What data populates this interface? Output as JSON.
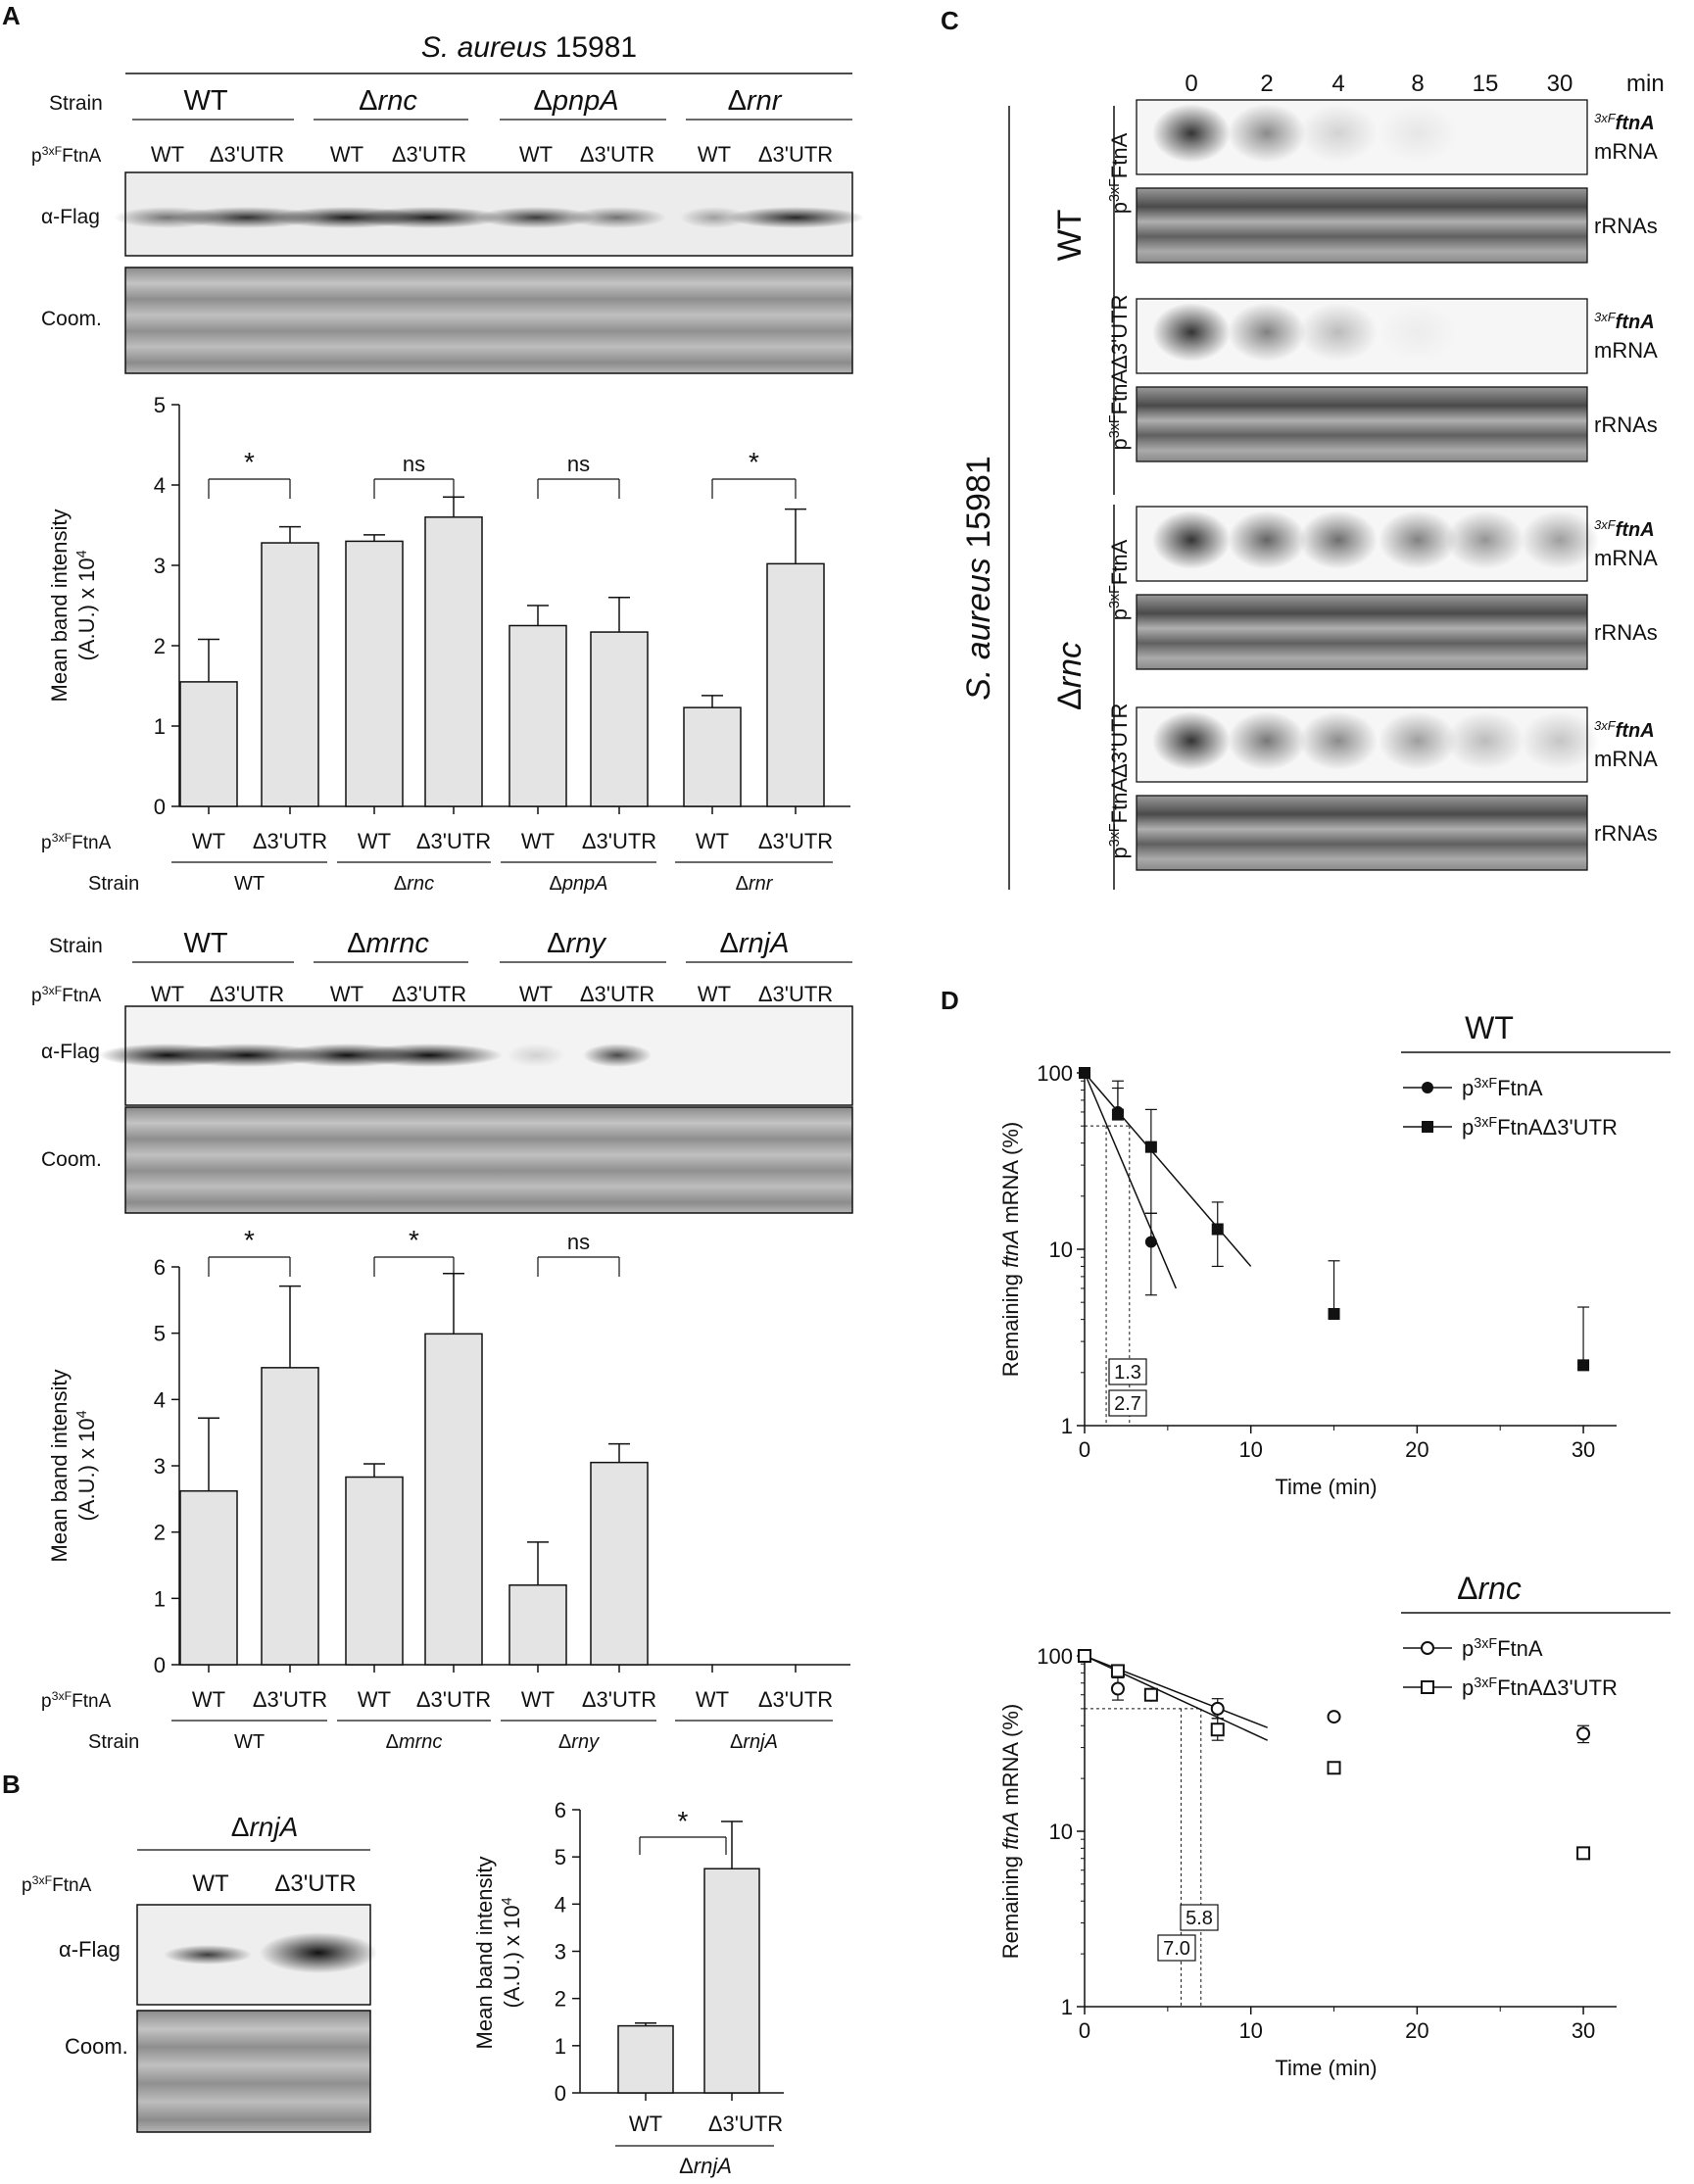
{
  "panel_a": {
    "letter": "A",
    "organism": "S. aureus",
    "strain_number": "15981",
    "strain_label": "Strain",
    "plasmid_label": "p3xFFtnA",
    "plasmid_prefix": "p",
    "plasmid_sup": "3xF",
    "plasmid_suffix": "FtnA",
    "lane_labels": [
      "WT",
      "Δ3'UTR"
    ],
    "blot1_strains": [
      "WT",
      "Δrnc",
      "ΔpnpA",
      "Δrnr"
    ],
    "blot2_strains": [
      "WT",
      "Δmrnc",
      "Δrny",
      "ΔrnjA"
    ],
    "flag_label": "α-Flag",
    "coom_label": "Coom.",
    "ylabel_line1": "Mean band intensity",
    "ylabel_line2": "(A.U.) x 10",
    "ylabel_exp": "4"
  },
  "panel_b": {
    "letter": "B",
    "strain": "ΔrnjA",
    "plasmid_label": "p3xFFtnA",
    "lane_labels": [
      "WT",
      "Δ3'UTR"
    ],
    "flag_label": "α-Flag",
    "coom_label": "Coom."
  },
  "panel_c": {
    "letter": "C",
    "organism": "S. aureus",
    "strain_number": "15981",
    "timepoints": [
      "0",
      "2",
      "4",
      "8",
      "15",
      "30"
    ],
    "time_unit": "min",
    "groups": [
      "WT",
      "Δrnc"
    ],
    "constructs": [
      "p3xFFtnA",
      "p3xFFtnAΔ3'UTR"
    ],
    "mrna_label_sup": "3xF",
    "mrna_label_gene": "ftnA",
    "mrna_label_word": "mRNA",
    "rrna_label": "rRNAs"
  },
  "panel_d": {
    "letter": "D",
    "ylabel_pre": "Remaining ",
    "ylabel_gene": "ftnA",
    "ylabel_post": " mRNA (%)",
    "xlabel": "Time (min)",
    "legend_constructs": [
      "p3xFFtnA",
      "p3xFFtnAΔ3'UTR"
    ]
  },
  "chart_data": [
    {
      "type": "bar",
      "id": "A1",
      "categories": [
        "WT",
        "Δ3'UTR",
        "WT",
        "Δ3'UTR",
        "WT",
        "Δ3'UTR",
        "WT",
        "Δ3'UTR"
      ],
      "groups": [
        "WT",
        "Δrnc",
        "ΔpnpA",
        "Δrnr"
      ],
      "values": [
        1.55,
        3.28,
        3.3,
        3.6,
        2.25,
        2.17,
        1.23,
        3.02
      ],
      "errors": [
        0.53,
        0.2,
        0.08,
        0.25,
        0.25,
        0.43,
        0.15,
        0.68
      ],
      "significance": [
        "*",
        "ns",
        "ns",
        "*"
      ],
      "xlabel": "p3xFFtnA",
      "group_label": "Strain",
      "ylabel": "Mean band intensity (A.U.) x 10^4",
      "ylim": [
        0,
        5
      ],
      "yticks": [
        "0",
        "1",
        "2",
        "3",
        "4",
        "5"
      ]
    },
    {
      "type": "bar",
      "id": "A2",
      "categories": [
        "WT",
        "Δ3'UTR",
        "WT",
        "Δ3'UTR",
        "WT",
        "Δ3'UTR",
        "WT",
        "Δ3'UTR"
      ],
      "groups": [
        "WT",
        "Δmrnc",
        "Δrny",
        "ΔrnjA"
      ],
      "values": [
        2.62,
        4.48,
        2.83,
        4.99,
        1.2,
        3.05,
        0,
        0
      ],
      "errors": [
        1.1,
        1.23,
        0.2,
        0.91,
        0.65,
        0.28,
        0,
        0
      ],
      "significance": [
        "*",
        "*",
        "ns"
      ],
      "xlabel": "p3xFFtnA",
      "group_label": "Strain",
      "ylabel": "Mean band intensity (A.U.) x 10^4",
      "ylim": [
        0,
        6
      ],
      "yticks": [
        "0",
        "1",
        "2",
        "3",
        "4",
        "5",
        "6"
      ]
    },
    {
      "type": "bar",
      "id": "B",
      "categories": [
        "WT",
        "Δ3'UTR"
      ],
      "group": "ΔrnjA",
      "values": [
        1.42,
        4.75
      ],
      "errors": [
        0.06,
        1.0
      ],
      "significance": "*",
      "ylabel": "Mean band intensity (A.U.) x 10^4",
      "ylim": [
        0,
        6
      ],
      "yticks": [
        "0",
        "1",
        "2",
        "3",
        "4",
        "5",
        "6"
      ]
    },
    {
      "type": "scatter",
      "id": "D_WT",
      "title": "WT",
      "yscale": "log",
      "xlim": [
        0,
        32
      ],
      "ylim": [
        1,
        100
      ],
      "xticks": [
        "0",
        "10",
        "20",
        "30"
      ],
      "yticks": [
        "1",
        "10",
        "100"
      ],
      "series": [
        {
          "name": "p3xFFtnA",
          "marker": "filled-circle",
          "x": [
            0,
            2,
            4
          ],
          "y": [
            100,
            60,
            11
          ],
          "err_up": [
            0,
            22,
            5
          ],
          "err_down": [
            0,
            5,
            5.5
          ],
          "fit": [
            [
              0,
              100
            ],
            [
              5.5,
              6
            ]
          ]
        },
        {
          "name": "p3xFFtnAΔ3'UTR",
          "marker": "filled-square",
          "x": [
            0,
            2,
            4,
            8,
            15,
            30
          ],
          "y": [
            100,
            58,
            38,
            13,
            4.3,
            2.2
          ],
          "err_up": [
            0,
            32,
            24,
            5.5,
            4.3,
            2.5
          ],
          "err_down": [
            0,
            0,
            22,
            5,
            0,
            0
          ],
          "fit": [
            [
              0,
              100
            ],
            [
              10,
              8
            ]
          ]
        }
      ],
      "half_lives": [
        "1.3",
        "2.7"
      ]
    },
    {
      "type": "scatter",
      "id": "D_rnc",
      "title": "Δrnc",
      "yscale": "log",
      "xlim": [
        0,
        32
      ],
      "ylim": [
        1,
        100
      ],
      "xticks": [
        "0",
        "10",
        "20",
        "30"
      ],
      "yticks": [
        "1",
        "10",
        "100"
      ],
      "series": [
        {
          "name": "p3xFFtnA",
          "marker": "open-circle",
          "x": [
            0,
            2,
            4,
            8,
            15,
            30
          ],
          "y": [
            100,
            65,
            60,
            50,
            45,
            36
          ],
          "err_up": [
            0,
            10,
            0,
            7,
            0,
            4
          ],
          "err_down": [
            0,
            9,
            0,
            6,
            0,
            4
          ],
          "fit": [
            [
              0,
              100
            ],
            [
              11,
              39
            ]
          ]
        },
        {
          "name": "p3xFFtnAΔ3'UTR",
          "marker": "open-square",
          "x": [
            0,
            2,
            4,
            8,
            15,
            30
          ],
          "y": [
            100,
            82,
            60,
            38,
            23,
            7.5
          ],
          "err_up": [
            0,
            0,
            0,
            6,
            0,
            0
          ],
          "err_down": [
            0,
            0,
            0,
            5,
            0,
            0
          ],
          "fit": [
            [
              0,
              100
            ],
            [
              11,
              33
            ]
          ]
        }
      ],
      "half_lives": [
        "5.8",
        "7.0"
      ]
    }
  ]
}
